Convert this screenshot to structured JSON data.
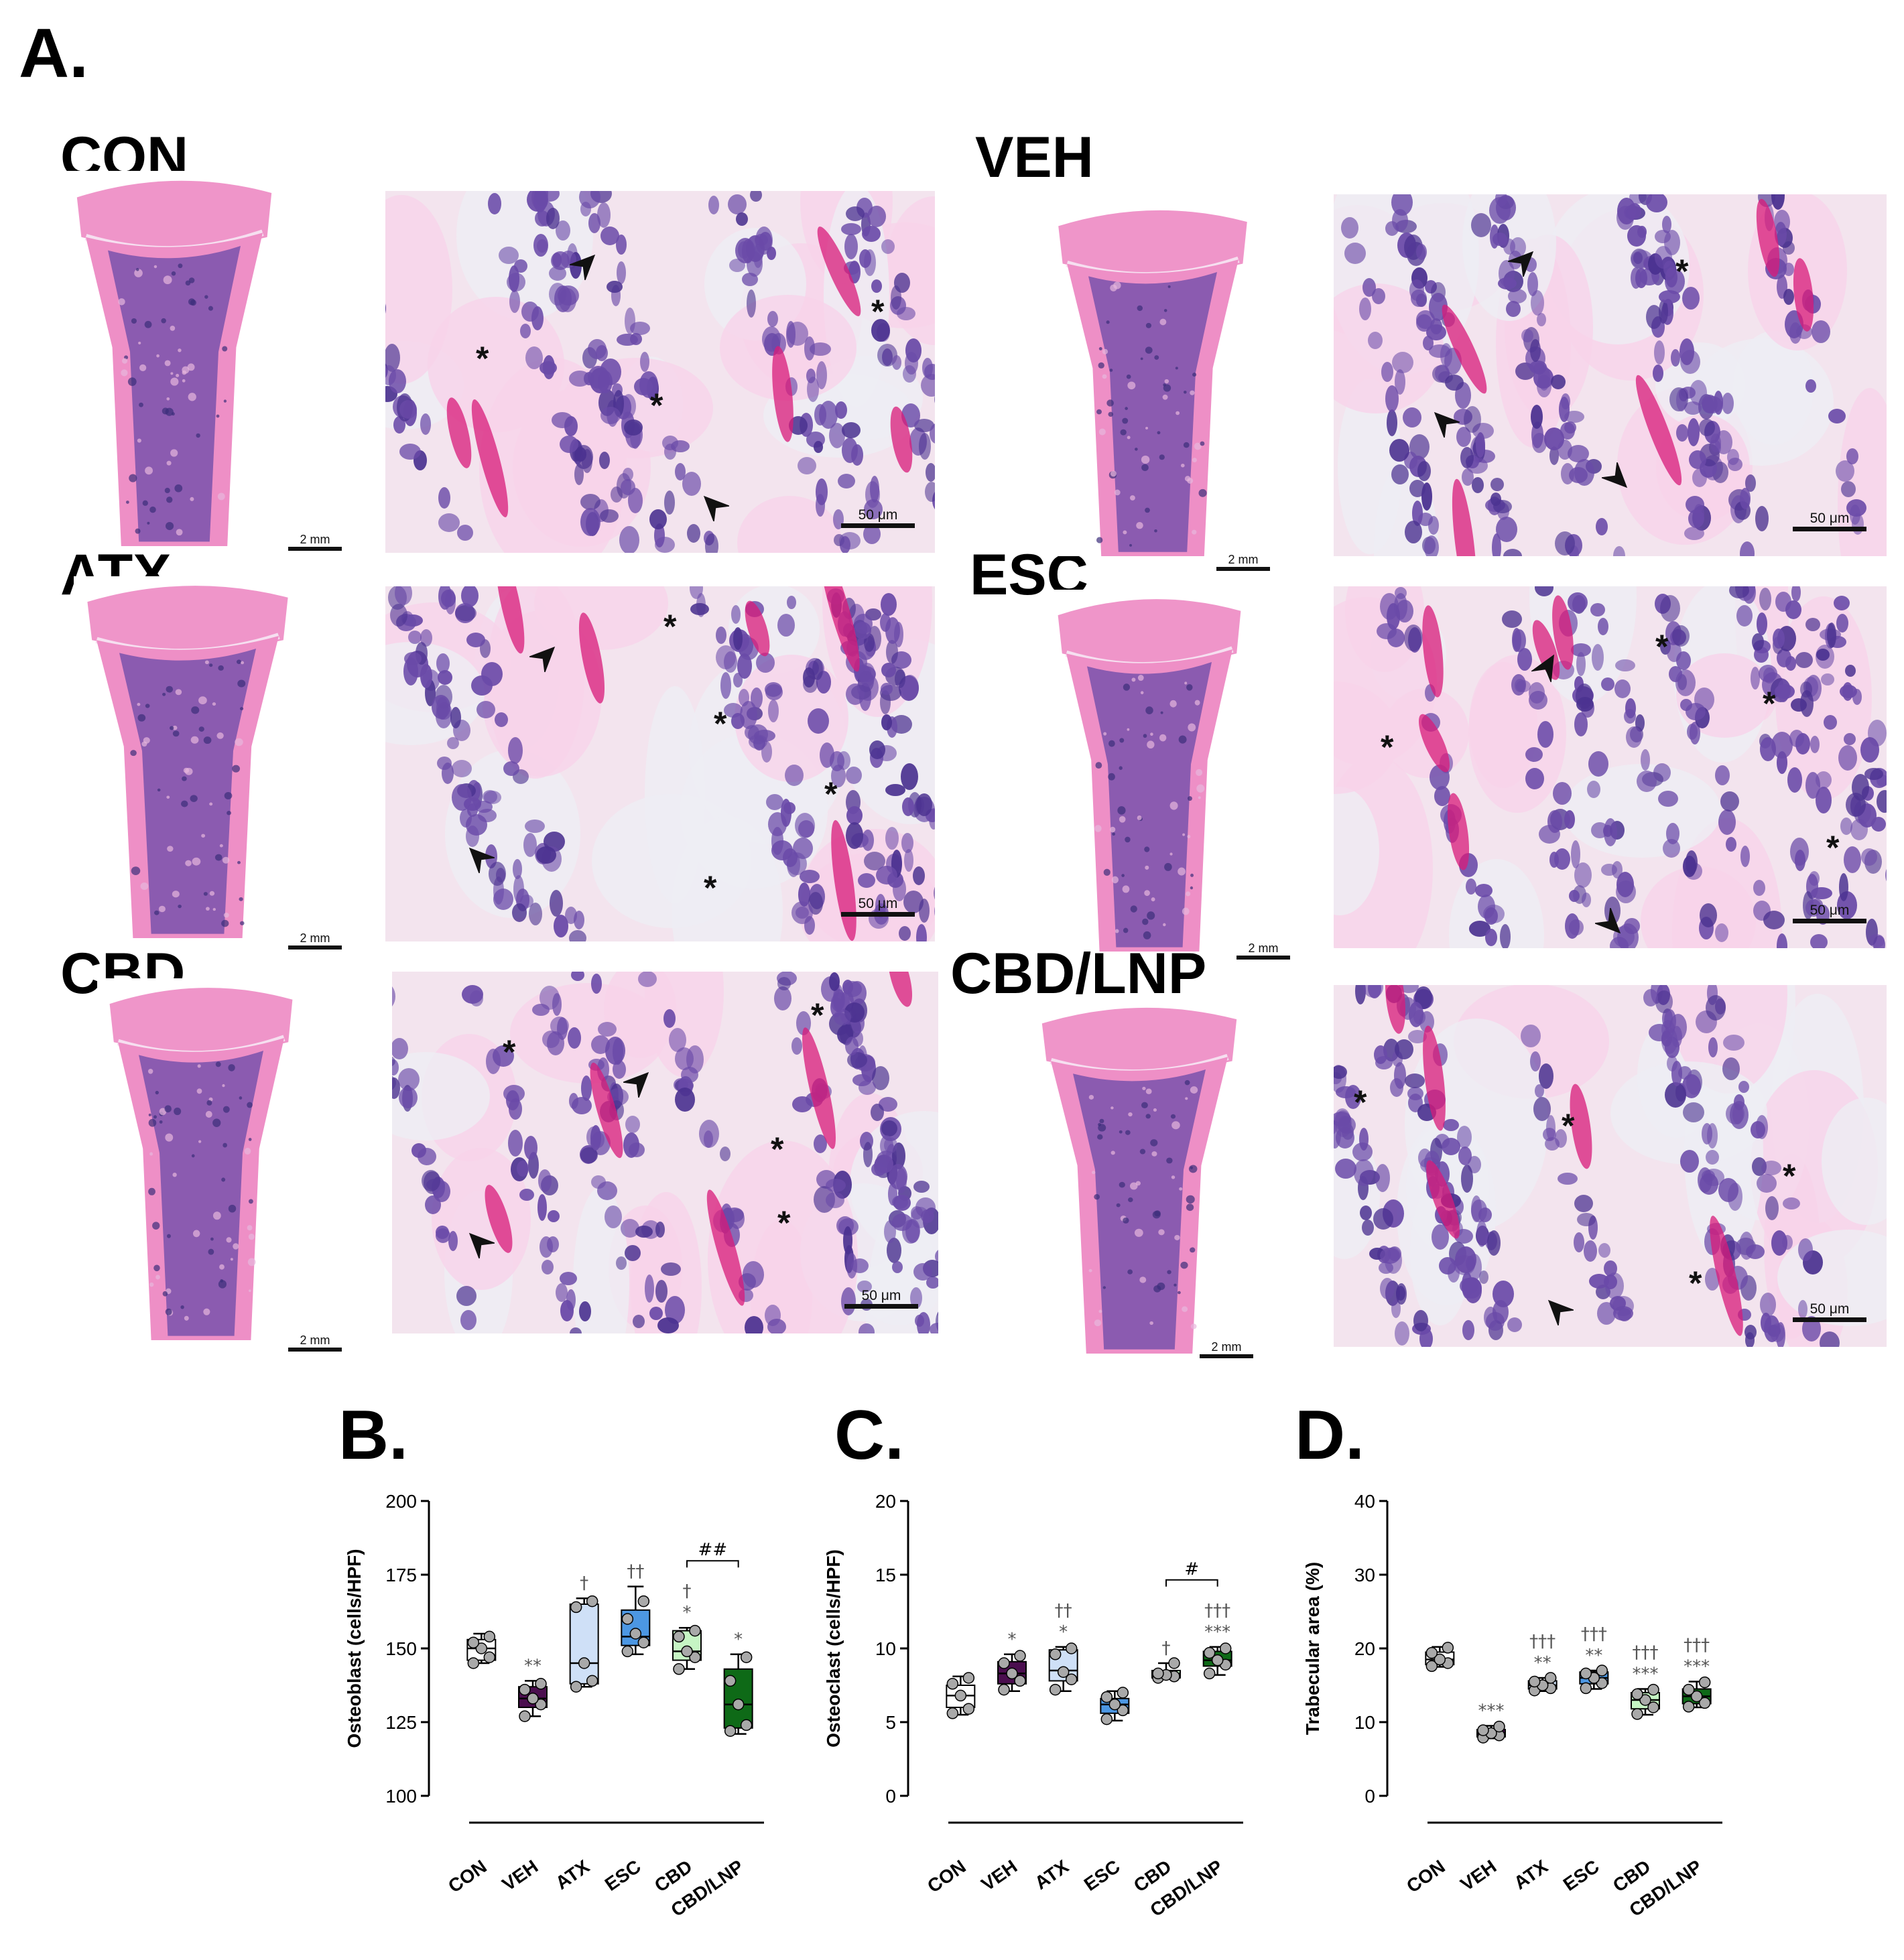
{
  "figure": {
    "panel_A": "A.",
    "panel_B": "B.",
    "panel_C": "C.",
    "panel_D": "D.",
    "groups": [
      "CON",
      "VEH",
      "ATX",
      "ESC",
      "CBD",
      "CBD/LNP"
    ],
    "scale_bar_bone": "2 mm",
    "scale_bar_micro": "50 μm"
  },
  "colors": {
    "CON": "#ffffff",
    "VEH": "#4b0e4f",
    "ATX": "#cfe0f7",
    "ESC": "#4c97e3",
    "CBD": "#c6f5c4",
    "CBD/LNP": "#0e6a17",
    "stain_pink": "#ee8fc6",
    "stain_purple": "#6a4aa8"
  },
  "chart_data": [
    {
      "type": "box",
      "panel": "B.",
      "ylabel": "Osteoblast (cells/HPF)",
      "categories": [
        "CON",
        "VEH",
        "ATX",
        "ESC",
        "CBD",
        "CBD/LNP"
      ],
      "ylim": [
        100,
        200
      ],
      "yticks": [
        100,
        125,
        150,
        175,
        200
      ],
      "boxes": [
        {
          "group": "CON",
          "min": 145,
          "q1": 146,
          "median": 150,
          "q3": 153,
          "max": 155,
          "points": [
            145,
            147,
            150,
            152,
            154
          ]
        },
        {
          "group": "VEH",
          "min": 127,
          "q1": 130,
          "median": 133,
          "q3": 137,
          "max": 139,
          "points": [
            127,
            131,
            133,
            136,
            138
          ]
        },
        {
          "group": "ATX",
          "min": 137,
          "q1": 138,
          "median": 145,
          "q3": 165,
          "max": 167,
          "points": [
            137,
            139,
            145,
            164,
            166
          ]
        },
        {
          "group": "ESC",
          "min": 148,
          "q1": 151,
          "median": 154,
          "q3": 163,
          "max": 171,
          "points": [
            149,
            152,
            155,
            160,
            166
          ]
        },
        {
          "group": "CBD",
          "min": 143,
          "q1": 146,
          "median": 149,
          "q3": 156,
          "max": 157,
          "points": [
            143,
            147,
            149,
            154,
            156
          ]
        },
        {
          "group": "CBD/LNP",
          "min": 121,
          "q1": 123,
          "median": 131,
          "q3": 143,
          "max": 148,
          "points": [
            122,
            124,
            131,
            139,
            147
          ]
        }
      ],
      "annotations": [
        {
          "group": "VEH",
          "text": "**"
        },
        {
          "group": "ATX",
          "text": "†"
        },
        {
          "group": "ESC",
          "text": "††"
        },
        {
          "group": "CBD",
          "text": "*"
        },
        {
          "group": "CBD",
          "text": "†"
        },
        {
          "group": "CBD/LNP",
          "text": "*"
        }
      ],
      "bracket": {
        "from": "CBD",
        "to": "CBD/LNP",
        "text": "##"
      }
    },
    {
      "type": "box",
      "panel": "C.",
      "ylabel": "Osteoclast (cells/HPF)",
      "categories": [
        "CON",
        "VEH",
        "ATX",
        "ESC",
        "CBD",
        "CBD/LNP"
      ],
      "ylim": [
        0,
        20
      ],
      "yticks": [
        0,
        5,
        10,
        15,
        20
      ],
      "boxes": [
        {
          "group": "CON",
          "min": 5.5,
          "q1": 6.0,
          "median": 6.8,
          "q3": 7.5,
          "max": 8.1,
          "points": [
            5.6,
            5.9,
            6.8,
            7.6,
            8.0
          ]
        },
        {
          "group": "VEH",
          "min": 7.1,
          "q1": 7.6,
          "median": 8.3,
          "q3": 9.1,
          "max": 9.6,
          "points": [
            7.2,
            7.8,
            8.3,
            9.0,
            9.5
          ]
        },
        {
          "group": "ATX",
          "min": 7.1,
          "q1": 7.8,
          "median": 8.5,
          "q3": 9.9,
          "max": 10.1,
          "points": [
            7.2,
            7.9,
            8.4,
            9.6,
            10.0
          ]
        },
        {
          "group": "ESC",
          "min": 5.1,
          "q1": 5.6,
          "median": 6.2,
          "q3": 6.6,
          "max": 7.1,
          "points": [
            5.2,
            5.8,
            6.2,
            6.7,
            7.0
          ]
        },
        {
          "group": "CBD",
          "min": 8.0,
          "q1": 8.0,
          "median": 8.3,
          "q3": 8.5,
          "max": 9.0,
          "points": [
            8.0,
            8.1,
            8.2,
            8.3,
            9.0
          ]
        },
        {
          "group": "CBD/LNP",
          "min": 8.2,
          "q1": 8.8,
          "median": 9.2,
          "q3": 9.8,
          "max": 10.1,
          "points": [
            8.3,
            8.9,
            9.2,
            9.7,
            10.0
          ]
        }
      ],
      "annotations": [
        {
          "group": "VEH",
          "text": "*"
        },
        {
          "group": "ATX",
          "text": "*"
        },
        {
          "group": "ATX",
          "text": "††"
        },
        {
          "group": "CBD",
          "text": "†"
        },
        {
          "group": "CBD/LNP",
          "text": "***"
        },
        {
          "group": "CBD/LNP",
          "text": "†††"
        }
      ],
      "bracket": {
        "from": "CBD",
        "to": "CBD/LNP",
        "text": "#"
      }
    },
    {
      "type": "box",
      "panel": "D.",
      "ylabel": "Trabecular area (%)",
      "categories": [
        "CON",
        "VEH",
        "ATX",
        "ESC",
        "CBD",
        "CBD/LNP"
      ],
      "ylim": [
        0,
        40
      ],
      "yticks": [
        0,
        10,
        20,
        30,
        40
      ],
      "boxes": [
        {
          "group": "CON",
          "min": 17.5,
          "q1": 17.8,
          "median": 18.5,
          "q3": 19.5,
          "max": 20.2,
          "points": [
            17.6,
            18.0,
            18.5,
            19.4,
            20.1
          ]
        },
        {
          "group": "VEH",
          "min": 7.8,
          "q1": 8.0,
          "median": 8.5,
          "q3": 9.0,
          "max": 9.5,
          "points": [
            7.9,
            8.2,
            8.5,
            8.9,
            9.4
          ]
        },
        {
          "group": "ATX",
          "min": 14.2,
          "q1": 14.5,
          "median": 15.0,
          "q3": 15.6,
          "max": 16.0,
          "points": [
            14.3,
            14.6,
            15.0,
            15.5,
            16.0
          ]
        },
        {
          "group": "ESC",
          "min": 14.5,
          "q1": 15.2,
          "median": 16.0,
          "q3": 16.8,
          "max": 17.0,
          "points": [
            14.6,
            15.3,
            16.0,
            16.6,
            17.0
          ]
        },
        {
          "group": "CBD",
          "min": 11.0,
          "q1": 11.8,
          "median": 13.0,
          "q3": 14.0,
          "max": 14.5,
          "points": [
            11.1,
            12.0,
            13.0,
            13.8,
            14.4
          ]
        },
        {
          "group": "CBD/LNP",
          "min": 12.0,
          "q1": 12.5,
          "median": 13.5,
          "q3": 14.5,
          "max": 15.5,
          "points": [
            12.1,
            12.6,
            13.5,
            14.4,
            15.4
          ]
        }
      ],
      "annotations": [
        {
          "group": "VEH",
          "text": "***"
        },
        {
          "group": "ATX",
          "text": "**"
        },
        {
          "group": "ATX",
          "text": "†††"
        },
        {
          "group": "ESC",
          "text": "**"
        },
        {
          "group": "ESC",
          "text": "†††"
        },
        {
          "group": "CBD",
          "text": "***"
        },
        {
          "group": "CBD",
          "text": "†††"
        },
        {
          "group": "CBD/LNP",
          "text": "***"
        },
        {
          "group": "CBD/LNP",
          "text": "†††"
        }
      ]
    }
  ]
}
